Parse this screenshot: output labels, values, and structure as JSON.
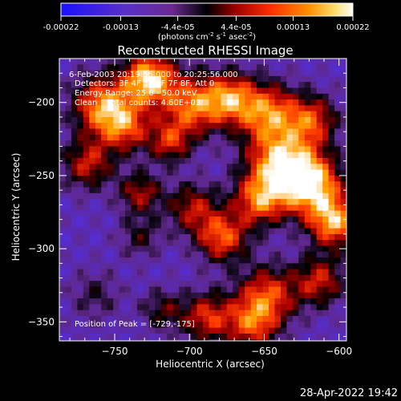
{
  "chart_data": {
    "type": "heatmap",
    "title": "Reconstructed RHESSI Image",
    "xlabel": "Heliocentric X (arcsec)",
    "ylabel": "Heliocentric Y (arcsec)",
    "xlim": [
      -787,
      -595
    ],
    "ylim": [
      -363,
      -170
    ],
    "x_ticks": [
      -750,
      -700,
      -650,
      -600
    ],
    "y_ticks": [
      -200,
      -250,
      -300,
      -350
    ],
    "colorbar": {
      "range": [
        -0.00022,
        0.00022
      ],
      "tick_values": [
        -0.00022,
        -0.00013,
        -4.4e-05,
        4.4e-05,
        0.00013,
        0.00022
      ],
      "tick_labels": [
        "-0.00022",
        "-0.00013",
        "-4.4e-05",
        "4.4e-05",
        "0.00013",
        "0.00022"
      ],
      "unit_label": "(photons cm",
      "unit_exp1": "-2",
      "unit_mid": " s",
      "unit_exp2": "-1",
      "unit_mid2": " asec",
      "unit_exp3": "-2",
      "unit_end": ")",
      "colormap": [
        "#2010ff",
        "#5a2cd0",
        "#7a3aa8",
        "#000000",
        "#b00000",
        "#ff4000",
        "#ffa000",
        "#ffffff"
      ]
    },
    "annotations": [
      "6-Feb-2003 20:19:56.000 to 20:25:56.000",
      "Detectors: 3F 4F 5F 6F 7F 8F, Att 0",
      "Energy Range: 25.0 - 50.0 keV",
      "Clean    Total counts: 4.60E+03"
    ],
    "peak_label": "Position of Peak = [-729,-175]",
    "peak_position": [
      -729,
      -175
    ]
  },
  "footer": {
    "timestamp": "28-Apr-2022 19:42"
  }
}
